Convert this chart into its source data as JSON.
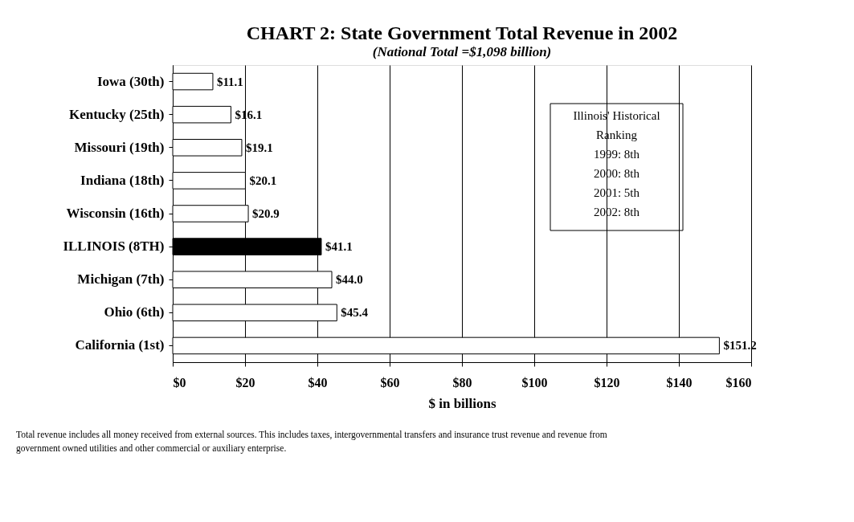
{
  "chart_data": {
    "type": "bar",
    "orientation": "horizontal",
    "title": "CHART 2: State Government Total Revenue in 2002",
    "subtitle": "(National Total =$1,098 billion)",
    "xlabel": "$ in billions",
    "categories": [
      "Iowa (30th)",
      "Kentucky (25th)",
      "Missouri (19th)",
      "Indiana (18th)",
      "Wisconsin (16th)",
      "ILLINOIS (8TH)",
      "Michigan (7th)",
      "Ohio (6th)",
      "California (1st)"
    ],
    "values": [
      11.1,
      16.1,
      19.1,
      20.1,
      20.9,
      41.1,
      44.0,
      45.4,
      151.2
    ],
    "value_labels": [
      "$11.1",
      "$16.1",
      "$19.1",
      "$20.1",
      "$20.9",
      "$41.1",
      "$44.0",
      "$45.4",
      "$151.2"
    ],
    "colors": [
      "#ffffff",
      "#ffffff",
      "#ffffff",
      "#ffffff",
      "#ffffff",
      "#000000",
      "#ffffff",
      "#ffffff",
      "#ffffff"
    ],
    "xlim": [
      0,
      160
    ],
    "xticks": [
      {
        "value": 0,
        "label": "$0"
      },
      {
        "value": 20,
        "label": "$20"
      },
      {
        "value": 40,
        "label": "$40"
      },
      {
        "value": 60,
        "label": "$60"
      },
      {
        "value": 80,
        "label": "$80"
      },
      {
        "value": 100,
        "label": "$100"
      },
      {
        "value": 120,
        "label": "$120"
      },
      {
        "value": 140,
        "label": "$140"
      },
      {
        "value": 160,
        "label": "$160"
      }
    ],
    "grid": "x",
    "annotations": [
      "Illinois' Historical",
      "Ranking",
      "1999: 8th",
      "2000: 8th",
      "2001: 5th",
      "2002: 8th",
      "Total revenue includes all money received from external sources.  This includes taxes, intergovernmental transfers and insurance trust revenue and revenue from government owned utilities and other commercial or auxiliary enterprise."
    ]
  }
}
